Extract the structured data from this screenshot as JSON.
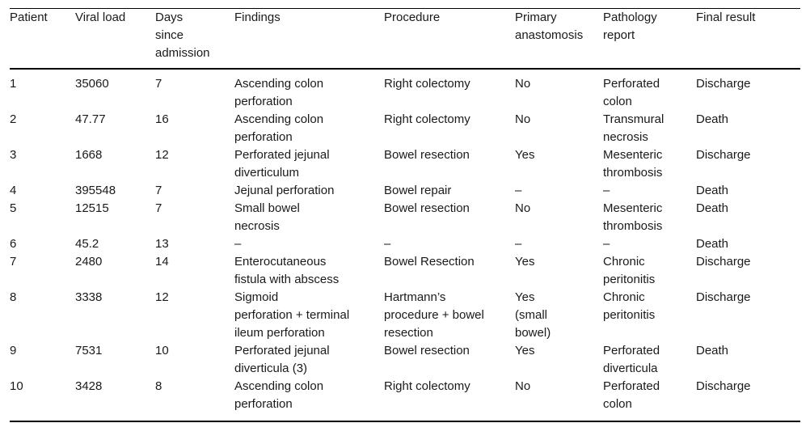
{
  "page": {
    "background": "#ffffff",
    "text_color": "#1a1a1a",
    "rule_color": "#000000"
  },
  "table": {
    "headers": [
      "Patient",
      "Viral load",
      "Days\nsince\nadmission",
      "Findings",
      "Procedure",
      "Primary\nanastomosis",
      "Pathology\nreport",
      "Final result"
    ],
    "rows": [
      [
        "1",
        "35060",
        "7",
        "Ascending colon\nperforation",
        "Right colectomy",
        "No",
        "Perforated\ncolon",
        "Discharge"
      ],
      [
        "2",
        "47.77",
        "16",
        "Ascending colon\nperforation",
        "Right colectomy",
        "No",
        "Transmural\nnecrosis",
        "Death"
      ],
      [
        "3",
        "1668",
        "12",
        "Perforated jejunal\ndiverticulum",
        "Bowel resection",
        "Yes",
        "Mesenteric\nthrombosis",
        "Discharge"
      ],
      [
        "4",
        "395548",
        "7",
        "Jejunal perforation",
        "Bowel repair",
        "–",
        "–",
        "Death"
      ],
      [
        "5",
        "12515",
        "7",
        "Small bowel\nnecrosis",
        "Bowel resection",
        "No",
        "Mesenteric\nthrombosis",
        "Death"
      ],
      [
        "6",
        "45.2",
        "13",
        "–",
        "–",
        "–",
        "–",
        "Death"
      ],
      [
        "7",
        "2480",
        "14",
        "Enterocutaneous\nfistula with abscess",
        "Bowel Resection",
        "Yes",
        "Chronic\nperitonitis",
        "Discharge"
      ],
      [
        "8",
        "3338",
        "12",
        "Sigmoid\nperforation + terminal\nileum perforation",
        "Hartmann’s\nprocedure + bowel\nresection",
        "Yes\n(small\nbowel)",
        "Chronic\nperitonitis",
        "Discharge"
      ],
      [
        "9",
        "7531",
        "10",
        "Perforated jejunal\ndiverticula (3)",
        "Bowel resection",
        "Yes",
        "Perforated\ndiverticula",
        "Death"
      ],
      [
        "10",
        "3428",
        "8",
        "Ascending colon\nperforation",
        "Right colectomy",
        "No",
        "Perforated\ncolon",
        "Discharge"
      ]
    ]
  }
}
